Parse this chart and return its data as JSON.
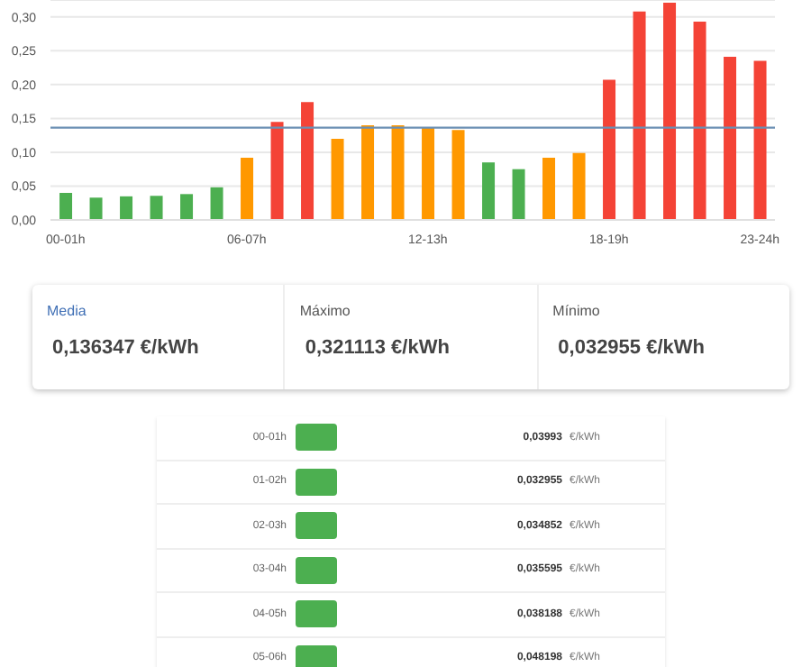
{
  "chart_data": {
    "type": "bar",
    "categories": [
      "00-01h",
      null,
      null,
      null,
      null,
      null,
      "06-07h",
      null,
      null,
      null,
      null,
      null,
      "12-13h",
      null,
      null,
      null,
      null,
      null,
      "18-19h",
      null,
      null,
      null,
      null,
      "23-24h"
    ],
    "values": [
      0.03993,
      0.032955,
      0.034852,
      0.035595,
      0.038188,
      0.048198,
      0.092,
      0.145,
      0.174,
      0.12,
      0.14,
      0.14,
      0.136,
      0.133,
      0.085,
      0.075,
      0.092,
      0.099,
      0.207,
      0.308,
      0.321113,
      0.293,
      0.241,
      0.235
    ],
    "colors": [
      "#4caf50",
      "#4caf50",
      "#4caf50",
      "#4caf50",
      "#4caf50",
      "#4caf50",
      "#ff9800",
      "#f44336",
      "#f44336",
      "#ff9800",
      "#ff9800",
      "#ff9800",
      "#ff9800",
      "#ff9800",
      "#4caf50",
      "#4caf50",
      "#ff9800",
      "#ff9800",
      "#f44336",
      "#f44336",
      "#f44336",
      "#f44336",
      "#f44336",
      "#f44336"
    ],
    "ylim": [
      0,
      0.325
    ],
    "yticks": [
      {
        "value": 0,
        "label": "0,00"
      },
      {
        "value": 0.05,
        "label": "0,05"
      },
      {
        "value": 0.1,
        "label": "0,10"
      },
      {
        "value": 0.15,
        "label": "0,15"
      },
      {
        "value": 0.2,
        "label": "0,20"
      },
      {
        "value": 0.25,
        "label": "0,25"
      },
      {
        "value": 0.3,
        "label": "0,30"
      }
    ],
    "grid": "y",
    "ref_lines": [
      {
        "axis": "y",
        "value": 0.136347,
        "color": "#6b8fb3"
      }
    ],
    "annotations": [
      "Media",
      "0,136347 €/kWh",
      "Máximo",
      "0,321113 €/kWh",
      "Mínimo",
      "0,032955 €/kWh",
      "00-01h",
      "0,03993",
      "01-02h",
      "0,032955",
      "02-03h",
      "0,034852",
      "03-04h",
      "0,035595",
      "04-05h",
      "0,038188",
      "05-06h",
      "0,048198",
      "€/kWh"
    ]
  }
}
